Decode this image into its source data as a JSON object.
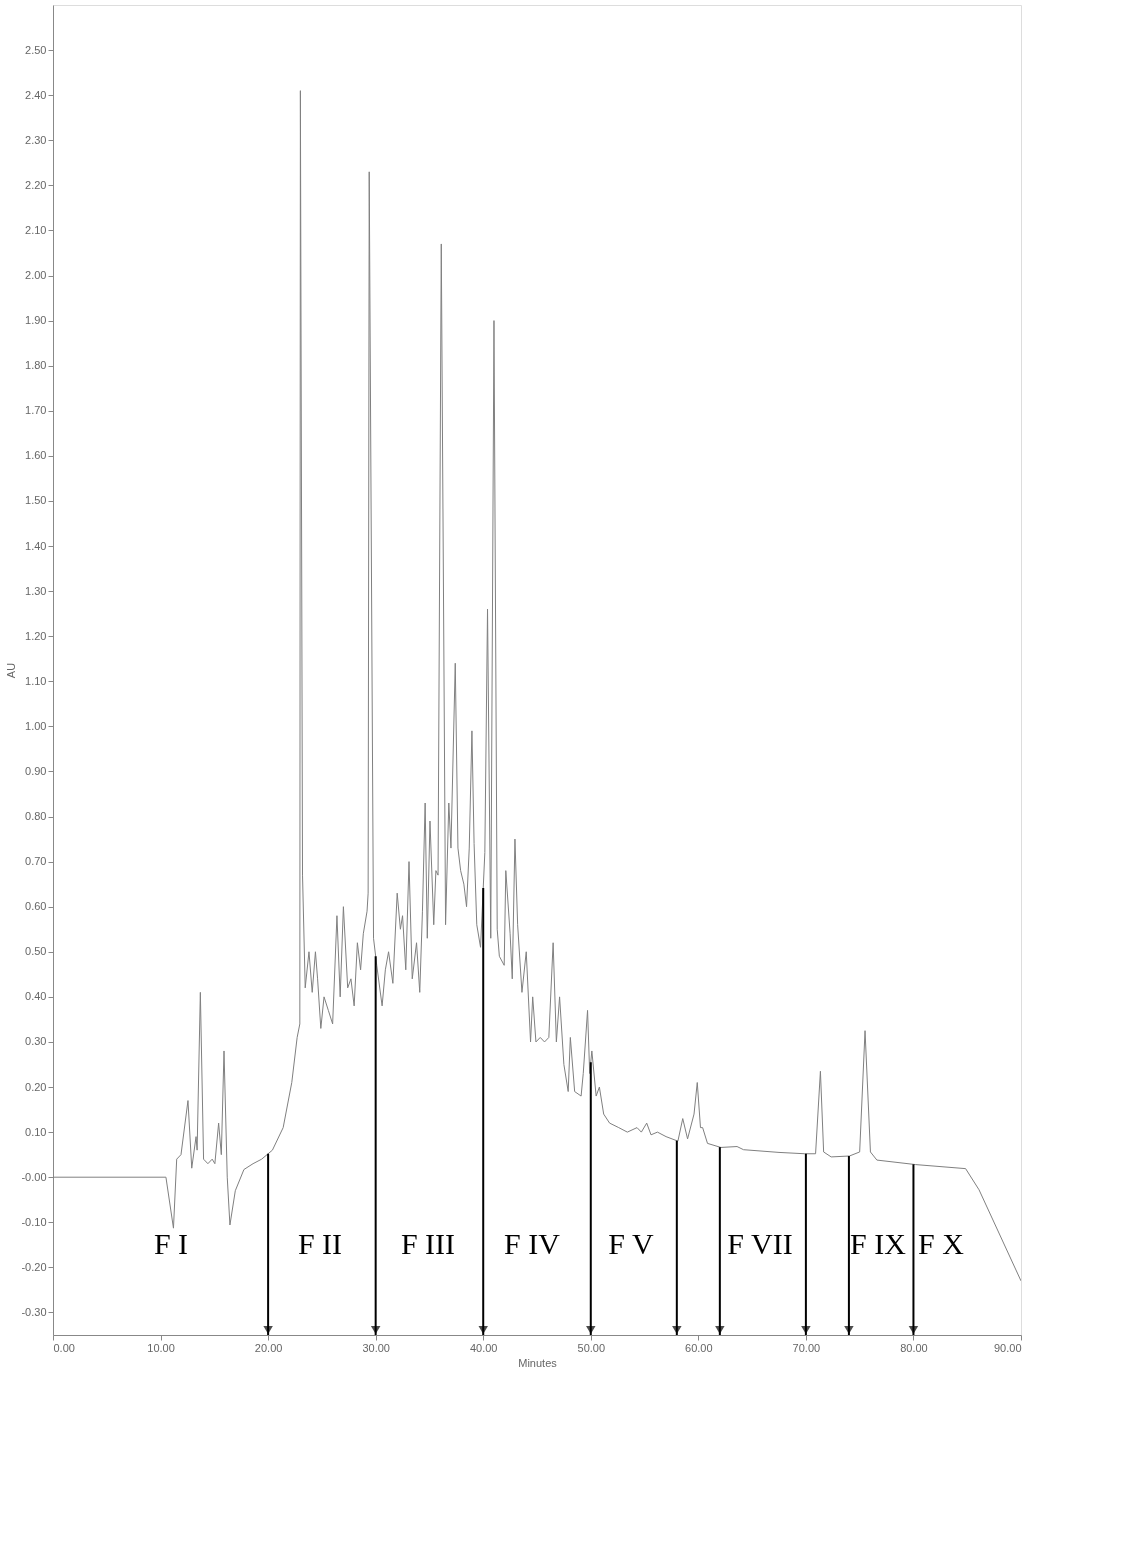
{
  "chart_data": {
    "type": "line",
    "xlabel": "Minutes",
    "ylabel": "AU",
    "xlim": [
      0,
      90
    ],
    "ylim": [
      -0.35,
      2.6
    ],
    "xticks": [
      {
        "value": 0,
        "label": "0.00"
      },
      {
        "value": 10,
        "label": "10.00"
      },
      {
        "value": 20,
        "label": "20.00"
      },
      {
        "value": 30,
        "label": "30.00"
      },
      {
        "value": 40,
        "label": "40.00"
      },
      {
        "value": 50,
        "label": "50.00"
      },
      {
        "value": 60,
        "label": "60.00"
      },
      {
        "value": 70,
        "label": "70.00"
      },
      {
        "value": 80,
        "label": "80.00"
      },
      {
        "value": 90,
        "label": "90.00"
      }
    ],
    "yticks": [
      {
        "value": -0.3,
        "label": "-0.30"
      },
      {
        "value": -0.2,
        "label": "-0.20"
      },
      {
        "value": -0.1,
        "label": "-0.10"
      },
      {
        "value": 0,
        "label": "-0.00"
      },
      {
        "value": 0.1,
        "label": "0.10"
      },
      {
        "value": 0.2,
        "label": "0.20"
      },
      {
        "value": 0.3,
        "label": "0.30"
      },
      {
        "value": 0.4,
        "label": "0.40"
      },
      {
        "value": 0.5,
        "label": "0.50"
      },
      {
        "value": 0.6,
        "label": "0.60"
      },
      {
        "value": 0.7,
        "label": "0.70"
      },
      {
        "value": 0.8,
        "label": "0.80"
      },
      {
        "value": 0.9,
        "label": "0.90"
      },
      {
        "value": 1.0,
        "label": "1.00"
      },
      {
        "value": 1.1,
        "label": "1.10"
      },
      {
        "value": 1.2,
        "label": "1.20"
      },
      {
        "value": 1.3,
        "label": "1.30"
      },
      {
        "value": 1.4,
        "label": "1.40"
      },
      {
        "value": 1.5,
        "label": "1.50"
      },
      {
        "value": 1.6,
        "label": "1.60"
      },
      {
        "value": 1.7,
        "label": "1.70"
      },
      {
        "value": 1.8,
        "label": "1.80"
      },
      {
        "value": 1.9,
        "label": "1.90"
      },
      {
        "value": 2.0,
        "label": "2.00"
      },
      {
        "value": 2.1,
        "label": "2.10"
      },
      {
        "value": 2.2,
        "label": "2.20"
      },
      {
        "value": 2.3,
        "label": "2.30"
      },
      {
        "value": 2.4,
        "label": "2.40"
      },
      {
        "value": 2.5,
        "label": "2.50"
      }
    ],
    "grid": false,
    "series": [
      {
        "color": "#808080",
        "x": [
          0,
          10.5,
          11.2,
          11.5,
          11.9,
          12.55,
          12.9,
          13.3,
          13.4,
          13.7,
          14.0,
          14.4,
          14.8,
          15.05,
          15.4,
          15.65,
          15.9,
          16.2,
          16.45,
          16.95,
          17.75,
          18.6,
          19.4,
          20.4,
          21.4,
          22.2,
          22.7,
          22.95,
          23.0,
          23.2,
          23.45,
          23.8,
          24.1,
          24.4,
          24.6,
          24.9,
          25.2,
          25.6,
          26.0,
          26.4,
          26.7,
          27.0,
          27.4,
          27.7,
          28.0,
          28.3,
          28.6,
          28.85,
          29.2,
          29.3,
          29.4,
          29.8,
          30.1,
          30.6,
          30.9,
          31.2,
          31.6,
          32.0,
          32.3,
          32.5,
          32.8,
          33.1,
          33.4,
          33.8,
          34.1,
          34.35,
          34.6,
          34.8,
          35.05,
          35.4,
          35.6,
          35.8,
          36.1,
          36.5,
          36.8,
          37.0,
          37.4,
          37.65,
          37.9,
          38.2,
          38.45,
          38.7,
          38.95,
          39.15,
          39.4,
          39.75,
          40.15,
          40.4,
          40.7,
          41.0,
          41.3,
          41.5,
          41.95,
          42.1,
          42.5,
          42.7,
          42.95,
          43.2,
          43.6,
          44.0,
          44.4,
          44.6,
          44.9,
          45.3,
          45.7,
          46.1,
          46.5,
          46.8,
          47.1,
          47.5,
          47.9,
          48.1,
          48.5,
          49.1,
          49.3,
          49.7,
          49.9,
          50.1,
          50.5,
          50.8,
          51.2,
          51.75,
          52.6,
          53.4,
          54.3,
          54.7,
          55.2,
          55.6,
          56.2,
          57.0,
          58.1,
          58.55,
          59.0,
          59.6,
          59.9,
          60.2,
          60.4,
          60.85,
          62.1,
          63.6,
          64.2,
          67.5,
          69.9,
          70.9,
          71.35,
          71.65,
          72.35,
          74.05,
          75.0,
          75.5,
          76.0,
          76.6,
          80.2,
          84.85,
          86.1,
          90.0
        ],
        "values": [
          0,
          0,
          -0.113,
          0.04,
          0.05,
          0.17,
          0.02,
          0.09,
          0.06,
          0.41,
          0.04,
          0.03,
          0.04,
          0.03,
          0.12,
          0.05,
          0.28,
          0.0,
          -0.106,
          -0.03,
          0.017,
          0.03,
          0.04,
          0.06,
          0.11,
          0.21,
          0.31,
          0.34,
          2.41,
          0.67,
          0.42,
          0.5,
          0.41,
          0.5,
          0.44,
          0.33,
          0.4,
          0.37,
          0.34,
          0.58,
          0.4,
          0.6,
          0.42,
          0.44,
          0.38,
          0.52,
          0.46,
          0.54,
          0.59,
          0.63,
          2.23,
          0.53,
          0.47,
          0.38,
          0.46,
          0.5,
          0.43,
          0.63,
          0.55,
          0.58,
          0.46,
          0.7,
          0.44,
          0.52,
          0.41,
          0.59,
          0.83,
          0.53,
          0.79,
          0.56,
          0.68,
          0.67,
          2.07,
          0.56,
          0.83,
          0.73,
          1.14,
          0.73,
          0.68,
          0.65,
          0.6,
          0.73,
          0.99,
          0.74,
          0.56,
          0.51,
          0.72,
          1.26,
          0.53,
          1.9,
          0.55,
          0.49,
          0.47,
          0.68,
          0.54,
          0.44,
          0.75,
          0.56,
          0.41,
          0.5,
          0.3,
          0.4,
          0.3,
          0.31,
          0.3,
          0.31,
          0.52,
          0.3,
          0.4,
          0.25,
          0.19,
          0.31,
          0.19,
          0.18,
          0.23,
          0.37,
          0.23,
          0.28,
          0.18,
          0.2,
          0.14,
          0.12,
          0.11,
          0.1,
          0.11,
          0.1,
          0.12,
          0.094,
          0.1,
          0.09,
          0.08,
          0.13,
          0.085,
          0.14,
          0.21,
          0.11,
          0.11,
          0.075,
          0.066,
          0.068,
          0.061,
          0.055,
          0.052,
          0.052,
          0.235,
          0.056,
          0.045,
          0.047,
          0.056,
          0.325,
          0.056,
          0.038,
          0.028,
          0.019,
          -0.028,
          -0.23
        ]
      }
    ],
    "ref_lines": [
      {
        "axis": "x",
        "value": 20,
        "color": "#000000"
      },
      {
        "axis": "x",
        "value": 30,
        "color": "#000000"
      },
      {
        "axis": "x",
        "value": 40,
        "color": "#000000"
      },
      {
        "axis": "x",
        "value": 50,
        "color": "#000000"
      },
      {
        "axis": "x",
        "value": 58,
        "color": "#000000"
      },
      {
        "axis": "x",
        "value": 62,
        "color": "#000000"
      },
      {
        "axis": "x",
        "value": 70,
        "color": "#000000"
      },
      {
        "axis": "x",
        "value": 74,
        "color": "#000000"
      },
      {
        "axis": "x",
        "value": 80,
        "color": "#000000"
      }
    ],
    "annotations": [
      "F I",
      "F II",
      "F III",
      "F IV",
      "F V",
      "F VII",
      "F IX",
      "F X"
    ]
  }
}
